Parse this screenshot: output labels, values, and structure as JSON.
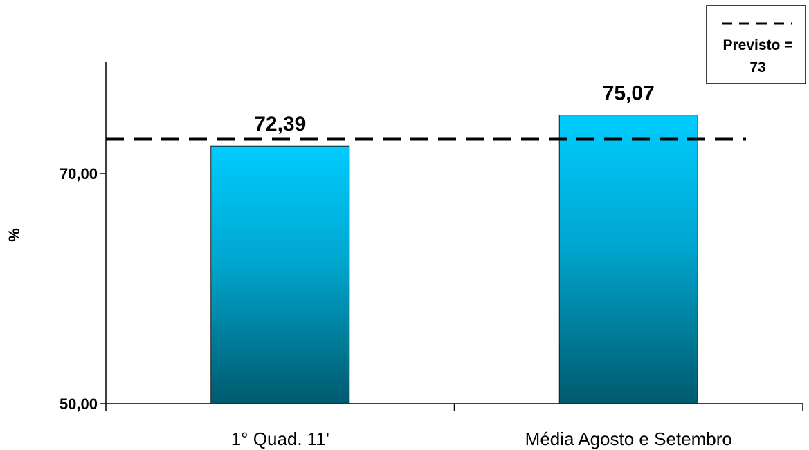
{
  "chart_data": {
    "type": "bar",
    "categories": [
      "1° Quad. 11'",
      "Média Agosto e Setembro"
    ],
    "values": [
      72.39,
      75.07
    ],
    "data_labels": [
      "72,39",
      "75,07"
    ],
    "ylabel": "%",
    "ylim": [
      50,
      79
    ],
    "yticks": [
      {
        "value": 50,
        "label": "50,00"
      },
      {
        "value": 70,
        "label": "70,00"
      }
    ],
    "reference_line": {
      "value": 73,
      "style": "dashed"
    },
    "legend": {
      "placement": "top-right",
      "line1": "Previsto =",
      "line2": "73"
    },
    "bar_color_top": "#00ccff",
    "bar_color_bottom": "#005a6e"
  }
}
